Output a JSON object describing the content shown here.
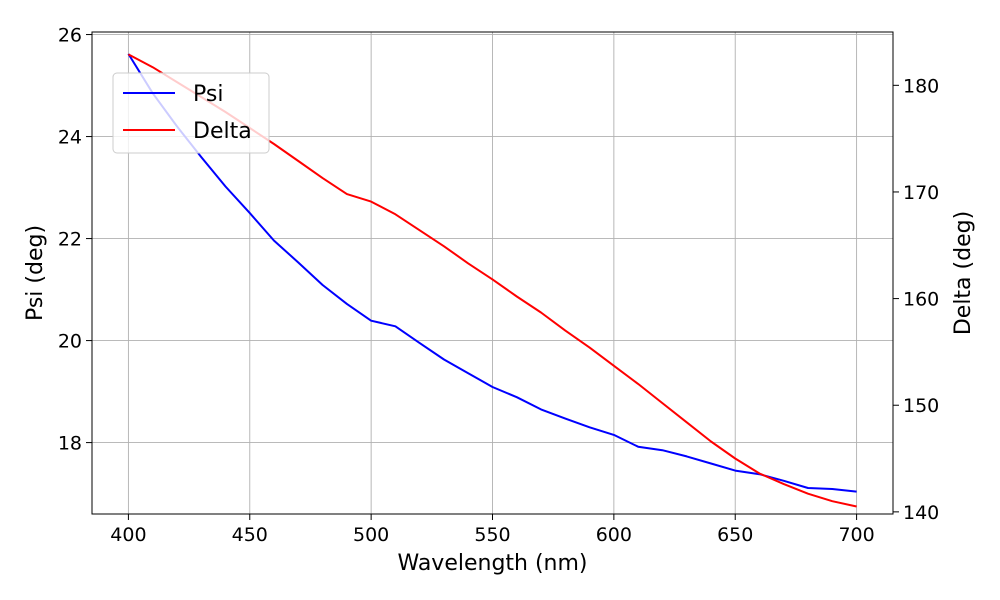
{
  "chart_data": {
    "type": "line",
    "xlabel": "Wavelength (nm)",
    "ylabel_left": "Psi (deg)",
    "ylabel_right": "Delta (deg)",
    "xlim": [
      385,
      715
    ],
    "ylim_left": [
      16.6,
      26.05
    ],
    "ylim_right": [
      139.8,
      185.0
    ],
    "x_ticks": [
      400,
      450,
      500,
      550,
      600,
      650,
      700
    ],
    "y_left_ticks": [
      18,
      20,
      22,
      24,
      26
    ],
    "y_right_ticks": [
      140,
      150,
      160,
      170,
      180
    ],
    "grid": true,
    "legend_position": "upper-left",
    "x": [
      400,
      410,
      420,
      430,
      440,
      450,
      460,
      470,
      480,
      490,
      500,
      510,
      520,
      530,
      540,
      550,
      560,
      570,
      580,
      590,
      600,
      610,
      620,
      630,
      640,
      650,
      660,
      670,
      680,
      690,
      700
    ],
    "series": [
      {
        "name": "Psi",
        "axis": "left",
        "color": "#0000ff",
        "values": [
          25.62,
          24.85,
          24.2,
          23.6,
          23.02,
          22.5,
          21.96,
          21.53,
          21.09,
          20.72,
          20.39,
          20.28,
          19.95,
          19.63,
          19.36,
          19.09,
          18.89,
          18.65,
          18.47,
          18.3,
          18.15,
          17.92,
          17.85,
          17.73,
          17.59,
          17.45,
          17.38,
          17.25,
          17.11,
          17.09,
          17.04
        ]
      },
      {
        "name": "Delta",
        "axis": "right",
        "color": "#ff0000",
        "values": [
          182.9,
          181.7,
          180.3,
          178.9,
          177.5,
          176.0,
          174.5,
          172.9,
          171.3,
          169.8,
          169.1,
          167.9,
          166.4,
          164.9,
          163.3,
          161.8,
          160.2,
          158.7,
          157.0,
          155.4,
          153.7,
          152.0,
          150.2,
          148.4,
          146.6,
          145.0,
          143.6,
          142.6,
          141.7,
          141.0,
          140.5
        ]
      }
    ]
  }
}
